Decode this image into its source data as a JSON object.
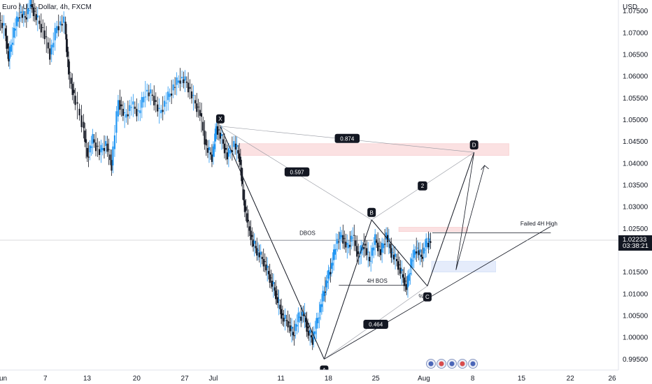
{
  "header": {
    "symbol_title": "Euro / U.S. Dollar, 4h, FXCM",
    "currency_label": "USD"
  },
  "price_tag": {
    "price": "1.02233",
    "countdown": "03:38:21",
    "value": 1.02233
  },
  "chart_data": {
    "type": "candlestick",
    "title": "Euro / U.S. Dollar, 4h, FXCM",
    "y_unit": "USD",
    "ylim": [
      0.9925,
      1.0775
    ],
    "y_ticks": [
      1.075,
      1.07,
      1.065,
      1.06,
      1.055,
      1.05,
      1.045,
      1.04,
      1.035,
      1.03,
      1.025,
      1.015,
      1.01,
      1.005,
      1.0,
      0.995
    ],
    "y_tick_labels": [
      "1.07500",
      "1.07000",
      "1.06500",
      "1.06000",
      "1.05500",
      "1.05000",
      "1.04500",
      "1.04000",
      "1.03500",
      "1.03000",
      "1.02500",
      "1.01500",
      "1.01000",
      "1.00500",
      "1.00000",
      "0.99500"
    ],
    "x_day_range": [
      0,
      56
    ],
    "x_ticks": [
      {
        "day": 0.4,
        "label": "Jun"
      },
      {
        "day": 6.7,
        "label": "7"
      },
      {
        "day": 12.7,
        "label": "13"
      },
      {
        "day": 19.8,
        "label": "20"
      },
      {
        "day": 26.7,
        "label": "27"
      },
      {
        "day": 30.8,
        "label": "Jul"
      },
      {
        "day": 40.5,
        "label": "11"
      },
      {
        "day": 47.3,
        "label": "18"
      },
      {
        "day": 54.1,
        "label": "25"
      },
      {
        "day": 61.0,
        "label": "Aug"
      },
      {
        "day": 68.0,
        "label": "8"
      },
      {
        "day": 75.0,
        "label": "15"
      },
      {
        "day": 82.0,
        "label": "22"
      },
      {
        "day": 88.0,
        "label": "26"
      }
    ],
    "price_path": [
      {
        "day": 0.0,
        "price": 1.0735
      },
      {
        "day": 1.0,
        "price": 1.071
      },
      {
        "day": 1.6,
        "price": 1.064
      },
      {
        "day": 2.4,
        "price": 1.0705
      },
      {
        "day": 3.2,
        "price": 1.0745
      },
      {
        "day": 4.0,
        "price": 1.0735
      },
      {
        "day": 4.8,
        "price": 1.0765
      },
      {
        "day": 5.6,
        "price": 1.0735
      },
      {
        "day": 6.6,
        "price": 1.0705
      },
      {
        "day": 7.6,
        "price": 1.065
      },
      {
        "day": 8.6,
        "price": 1.0715
      },
      {
        "day": 9.6,
        "price": 1.0725
      },
      {
        "day": 10.2,
        "price": 1.061
      },
      {
        "day": 11.0,
        "price": 1.0555
      },
      {
        "day": 12.2,
        "price": 1.0495
      },
      {
        "day": 12.9,
        "price": 1.0415
      },
      {
        "day": 13.7,
        "price": 1.0455
      },
      {
        "day": 14.7,
        "price": 1.0425
      },
      {
        "day": 15.6,
        "price": 1.0445
      },
      {
        "day": 16.4,
        "price": 1.0395
      },
      {
        "day": 17.4,
        "price": 1.0545
      },
      {
        "day": 18.3,
        "price": 1.0505
      },
      {
        "day": 19.3,
        "price": 1.0535
      },
      {
        "day": 20.3,
        "price": 1.0515
      },
      {
        "day": 21.3,
        "price": 1.0565
      },
      {
        "day": 22.3,
        "price": 1.0555
      },
      {
        "day": 23.3,
        "price": 1.0515
      },
      {
        "day": 24.3,
        "price": 1.0545
      },
      {
        "day": 25.3,
        "price": 1.0575
      },
      {
        "day": 26.3,
        "price": 1.0595
      },
      {
        "day": 27.2,
        "price": 1.0585
      },
      {
        "day": 28.2,
        "price": 1.0545
      },
      {
        "day": 29.1,
        "price": 1.0515
      },
      {
        "day": 30.0,
        "price": 1.0435
      },
      {
        "day": 30.8,
        "price": 1.0415
      },
      {
        "day": 31.4,
        "price": 1.0485
      },
      {
        "day": 32.2,
        "price": 1.0455
      },
      {
        "day": 33.0,
        "price": 1.0415
      },
      {
        "day": 34.0,
        "price": 1.0445
      },
      {
        "day": 34.7,
        "price": 1.0415
      },
      {
        "day": 35.3,
        "price": 1.0315
      },
      {
        "day": 36.0,
        "price": 1.0255
      },
      {
        "day": 36.7,
        "price": 1.0215
      },
      {
        "day": 37.4,
        "price": 1.0195
      },
      {
        "day": 38.2,
        "price": 1.0175
      },
      {
        "day": 38.9,
        "price": 1.0145
      },
      {
        "day": 39.6,
        "price": 1.0115
      },
      {
        "day": 40.2,
        "price": 1.0085
      },
      {
        "day": 40.9,
        "price": 1.0045
      },
      {
        "day": 41.7,
        "price": 1.0035
      },
      {
        "day": 42.4,
        "price": 1.0005
      },
      {
        "day": 43.2,
        "price": 1.0045
      },
      {
        "day": 43.9,
        "price": 1.0055
      },
      {
        "day": 44.5,
        "price": 1.0015
      },
      {
        "day": 45.2,
        "price": 0.9995
      },
      {
        "day": 46.0,
        "price": 1.0045
      },
      {
        "day": 46.7,
        "price": 1.0095
      },
      {
        "day": 47.3,
        "price": 1.0135
      },
      {
        "day": 47.9,
        "price": 1.0165
      },
      {
        "day": 48.6,
        "price": 1.0215
      },
      {
        "day": 49.4,
        "price": 1.0235
      },
      {
        "day": 50.2,
        "price": 1.0205
      },
      {
        "day": 51.0,
        "price": 1.0235
      },
      {
        "day": 51.8,
        "price": 1.0185
      },
      {
        "day": 52.6,
        "price": 1.0215
      },
      {
        "day": 53.4,
        "price": 1.0175
      },
      {
        "day": 54.2,
        "price": 1.0225
      },
      {
        "day": 55.0,
        "price": 1.0195
      },
      {
        "day": 55.8,
        "price": 1.0235
      },
      {
        "day": 56.5,
        "price": 1.0195
      },
      {
        "day": 57.3,
        "price": 1.0175
      },
      {
        "day": 58.0,
        "price": 1.0145
      },
      {
        "day": 58.7,
        "price": 1.0115
      },
      {
        "day": 59.4,
        "price": 1.0175
      },
      {
        "day": 60.1,
        "price": 1.0205
      },
      {
        "day": 60.8,
        "price": 1.0185
      },
      {
        "day": 61.5,
        "price": 1.0215
      },
      {
        "day": 62.1,
        "price": 1.0223
      }
    ],
    "zones": [
      {
        "name": "supply-zone",
        "day_start": 34.5,
        "day_end": 73.2,
        "price_low": 1.0418,
        "price_high": 1.0445,
        "color": "#f7c9cb"
      },
      {
        "name": "small-supply-zone",
        "day_start": 57.4,
        "day_end": 67.3,
        "price_low": 1.0243,
        "price_high": 1.0253,
        "color": "#f7c9cb"
      },
      {
        "name": "demand-zone",
        "day_start": 62.1,
        "day_end": 71.3,
        "price_low": 1.015,
        "price_high": 1.0175,
        "color": "#cfddf7"
      }
    ],
    "harmonic_points": [
      {
        "label": "X",
        "day": 31.8,
        "price": 1.0485
      },
      {
        "label": "A",
        "day": 46.7,
        "price": 0.995
      },
      {
        "label": "B",
        "day": 53.5,
        "price": 1.027
      },
      {
        "label": "C",
        "day": 61.5,
        "price": 1.0118
      },
      {
        "label": "D",
        "day": 68.2,
        "price": 1.0425
      }
    ],
    "ratios": [
      {
        "label": "0.874",
        "day": 50.0,
        "price": 1.0457
      },
      {
        "label": "0.597",
        "day": 42.8,
        "price": 1.038
      },
      {
        "label": "2",
        "day": 60.8,
        "price": 1.0348
      },
      {
        "label": "0.464",
        "day": 54.1,
        "price": 1.003
      }
    ],
    "annotations": [
      {
        "text": "DBOS",
        "day": 44.3,
        "price": 1.024
      },
      {
        "text": "4H BOS",
        "day": 54.3,
        "price": 1.013
      },
      {
        "text": "Failed 4H High",
        "day": 77.5,
        "price": 1.0262
      },
      {
        "text": "%",
        "day": 60.6,
        "price": 1.0095
      }
    ]
  },
  "event_icons": [
    "flag-icon",
    "flag-icon",
    "flag-icon",
    "flag-icon",
    "flag-icon"
  ]
}
